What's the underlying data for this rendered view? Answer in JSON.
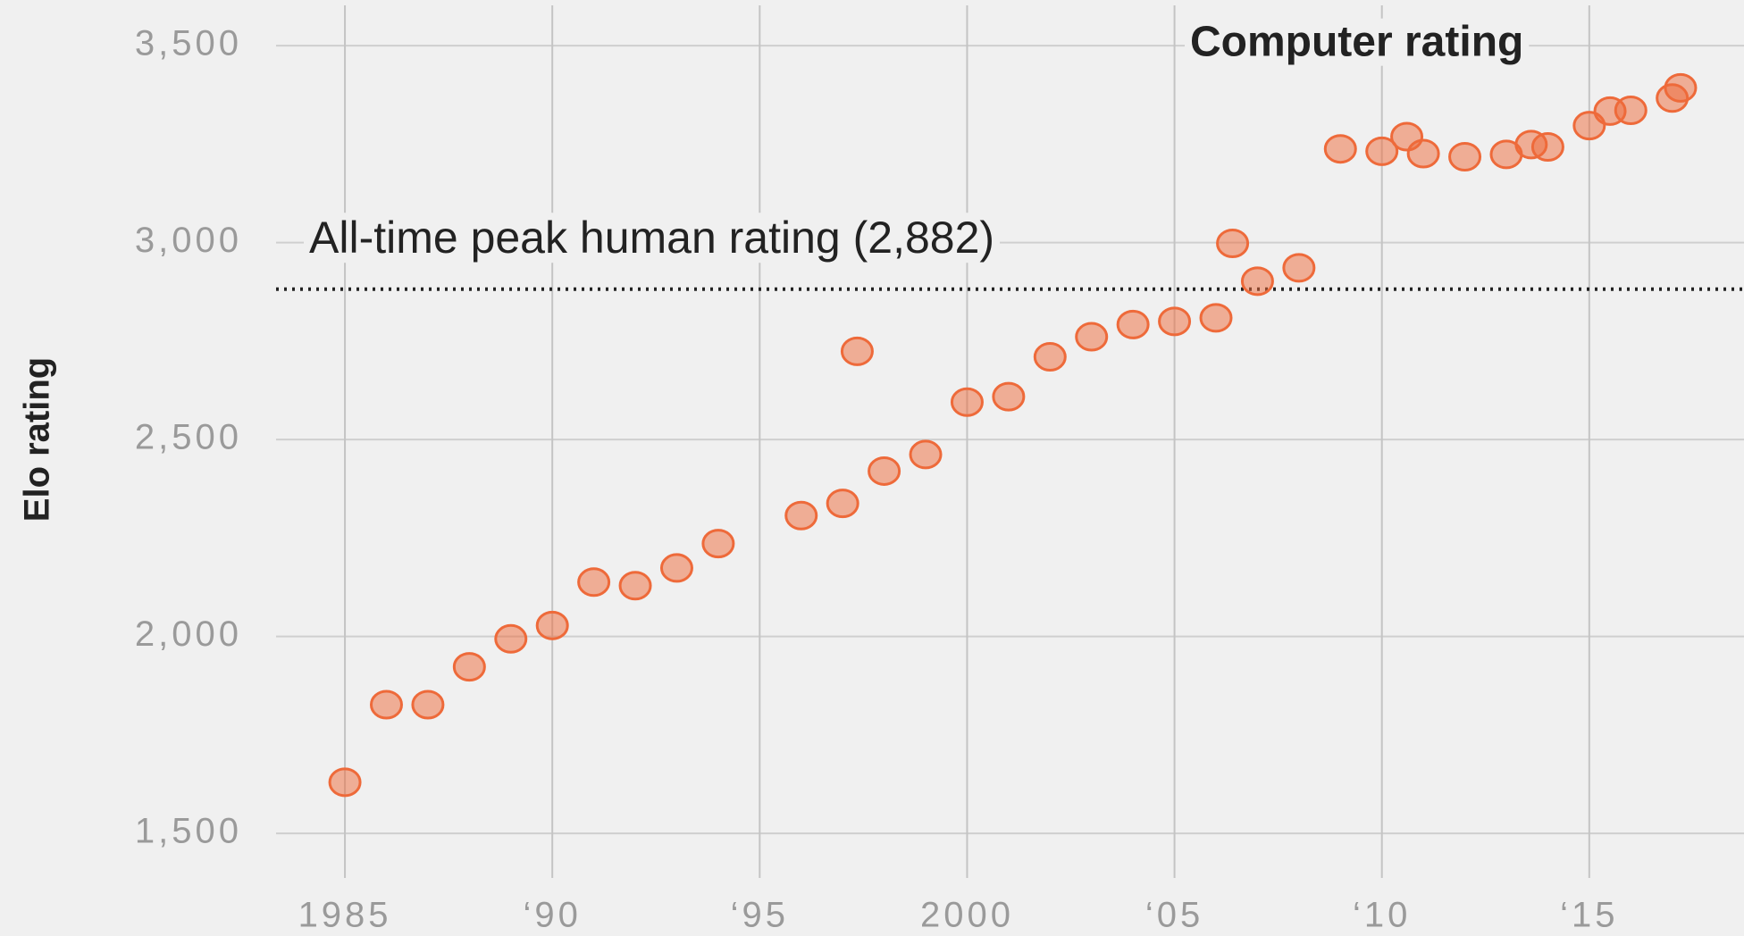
{
  "chart_data": {
    "type": "scatter",
    "y_label": "Elo rating",
    "x": [
      1985,
      1986,
      1987,
      1988,
      1989,
      1990,
      1991,
      1992,
      1993,
      1994,
      1996,
      1997,
      1997.35,
      1998,
      1999,
      2000,
      2001,
      2002,
      2003,
      2004,
      2005,
      2006,
      2006.4,
      2007,
      2008,
      2009,
      2010,
      2010.6,
      2011,
      2012,
      2013,
      2013.6,
      2014,
      2015,
      2015.5,
      2016,
      2017,
      2017.2
    ],
    "values": [
      1630,
      1827,
      1827,
      1923,
      1994,
      2028,
      2138,
      2129,
      2174,
      2236,
      2307,
      2338,
      2724,
      2420,
      2462,
      2595,
      2609,
      2710,
      2761,
      2792,
      2800,
      2809,
      2998,
      2902,
      2936,
      3238,
      3232,
      3269,
      3226,
      3218,
      3224,
      3249,
      3243,
      3297,
      3334,
      3336,
      3367,
      3393
    ],
    "color": "#ee6a3a",
    "xlim": [
      1983.34,
      2018.73
    ],
    "ylim": [
      1387,
      3616
    ],
    "xticks": [
      1985,
      {
        "value": 1990,
        "label": "‘90"
      },
      {
        "value": 1995,
        "label": "‘95"
      },
      2000,
      {
        "value": 2005,
        "label": "‘05"
      },
      {
        "value": 2010,
        "label": "‘10"
      },
      {
        "value": 2015,
        "label": "‘15"
      }
    ],
    "yticks": [
      {
        "value": 1500,
        "label": "1,500"
      },
      {
        "value": 2000,
        "label": "2,000"
      },
      {
        "value": 2500,
        "label": "2,500"
      },
      {
        "value": 3000,
        "label": "3,000"
      },
      {
        "value": 3500,
        "label": "3,500"
      }
    ],
    "grid": true,
    "reference_line": {
      "value": 2882,
      "label": "All-time peak human rating (2,882)"
    },
    "annotation": "Computer rating"
  }
}
